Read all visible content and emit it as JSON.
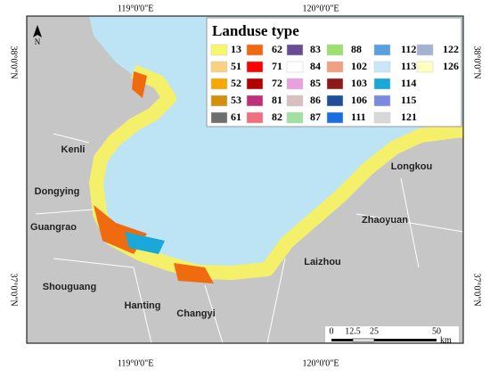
{
  "map": {
    "legend": {
      "title": "Landuse type",
      "items": [
        {
          "code": "13",
          "color": "#f7f76b"
        },
        {
          "code": "51",
          "color": "#f9d27f"
        },
        {
          "code": "52",
          "color": "#f5a800"
        },
        {
          "code": "53",
          "color": "#d4900a"
        },
        {
          "code": "61",
          "color": "#6e6e6e"
        },
        {
          "code": "62",
          "color": "#f06a10"
        },
        {
          "code": "71",
          "color": "#ff0000"
        },
        {
          "code": "72",
          "color": "#b50000"
        },
        {
          "code": "81",
          "color": "#c0307a"
        },
        {
          "code": "82",
          "color": "#f07080"
        },
        {
          "code": "83",
          "color": "#6a4c93"
        },
        {
          "code": "84",
          "color": "#ffffff"
        },
        {
          "code": "85",
          "color": "#e8a0e0"
        },
        {
          "code": "86",
          "color": "#d8c0c0"
        },
        {
          "code": "87",
          "color": "#a0e0a0"
        },
        {
          "code": "88",
          "color": "#9de070"
        },
        {
          "code": "102",
          "color": "#f0a080"
        },
        {
          "code": "103",
          "color": "#8b1a1a"
        },
        {
          "code": "106",
          "color": "#1f4e9a"
        },
        {
          "code": "111",
          "color": "#1a6ee0"
        },
        {
          "code": "112",
          "color": "#5aa0e0"
        },
        {
          "code": "113",
          "color": "#c8e8f8"
        },
        {
          "code": "114",
          "color": "#1aa8d8"
        },
        {
          "code": "115",
          "color": "#7a8ae0"
        },
        {
          "code": "121",
          "color": "#d8d8d8"
        },
        {
          "code": "122",
          "color": "#a0b4d0"
        },
        {
          "code": "126",
          "color": "#ffffc0"
        }
      ]
    },
    "places": [
      "Kenli",
      "Dongying",
      "Guangrao",
      "Shouguang",
      "Hanting",
      "Changyi",
      "Laizhou",
      "Zhaoyuan",
      "Longkou"
    ],
    "longitudes": [
      "119°0'0\"E",
      "120°0'0\"E"
    ],
    "latitudes": [
      "38°0'0\"N",
      "37°0'0\"N"
    ],
    "north": "N",
    "scale": [
      "0",
      "12.5",
      "25",
      "50",
      "km"
    ]
  }
}
